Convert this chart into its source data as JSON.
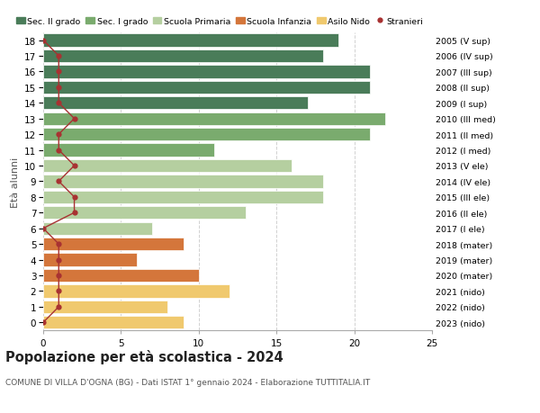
{
  "ages": [
    18,
    17,
    16,
    15,
    14,
    13,
    12,
    11,
    10,
    9,
    8,
    7,
    6,
    5,
    4,
    3,
    2,
    1,
    0
  ],
  "years": [
    "2005 (V sup)",
    "2006 (IV sup)",
    "2007 (III sup)",
    "2008 (II sup)",
    "2009 (I sup)",
    "2010 (III med)",
    "2011 (II med)",
    "2012 (I med)",
    "2013 (V ele)",
    "2014 (IV ele)",
    "2015 (III ele)",
    "2016 (II ele)",
    "2017 (I ele)",
    "2018 (mater)",
    "2019 (mater)",
    "2020 (mater)",
    "2021 (nido)",
    "2022 (nido)",
    "2023 (nido)"
  ],
  "bar_values": [
    19,
    18,
    21,
    21,
    17,
    22,
    21,
    11,
    16,
    18,
    18,
    13,
    7,
    9,
    6,
    10,
    12,
    8,
    9
  ],
  "bar_colors": [
    "#4a7c59",
    "#4a7c59",
    "#4a7c59",
    "#4a7c59",
    "#4a7c59",
    "#7aab6e",
    "#7aab6e",
    "#7aab6e",
    "#b5cfa0",
    "#b5cfa0",
    "#b5cfa0",
    "#b5cfa0",
    "#b5cfa0",
    "#d4763b",
    "#d4763b",
    "#d4763b",
    "#f0c96e",
    "#f0c96e",
    "#f0c96e"
  ],
  "stranieri": [
    0,
    1,
    1,
    1,
    1,
    2,
    1,
    1,
    2,
    1,
    2,
    2,
    0,
    1,
    1,
    1,
    1,
    1,
    0
  ],
  "legend_labels": [
    "Sec. II grado",
    "Sec. I grado",
    "Scuola Primaria",
    "Scuola Infanzia",
    "Asilo Nido",
    "Stranieri"
  ],
  "legend_colors": [
    "#4a7c59",
    "#7aab6e",
    "#b5cfa0",
    "#d4763b",
    "#f0c96e",
    "#a83232"
  ],
  "ylabel": "Età alunni",
  "title": "Popolazione per età scolastica - 2024",
  "subtitle": "COMUNE DI VILLA D'OGNA (BG) - Dati ISTAT 1° gennaio 2024 - Elaborazione TUTTITALIA.IT",
  "xlim": [
    0,
    25
  ],
  "background_color": "#ffffff",
  "grid_color": "#cccccc",
  "stranieri_color": "#a83232",
  "line_color": "#a83232"
}
